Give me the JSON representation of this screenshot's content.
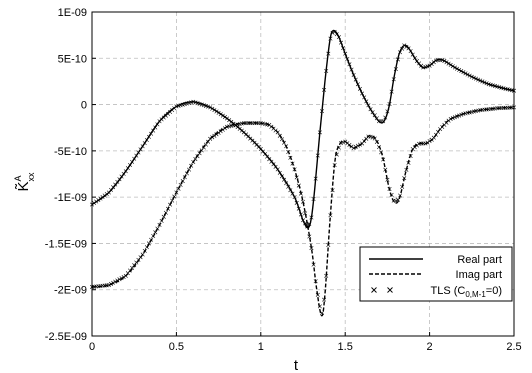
{
  "chart_data": {
    "type": "line",
    "title": "",
    "xlabel": "t",
    "ylabel": "K̃",
    "ylabel_super": "A",
    "ylabel_sub": "xx",
    "xlim": [
      0,
      2.5
    ],
    "ylim": [
      -2.5e-09,
      1e-09
    ],
    "x_ticks": [
      0,
      0.5,
      1,
      1.5,
      2,
      2.5
    ],
    "x_tick_labels": [
      "0",
      "0.5",
      "1",
      "1.5",
      "2",
      "2.5"
    ],
    "y_ticks": [
      1e-09,
      5e-10,
      0,
      -5e-10,
      -1e-09,
      -1.5e-09,
      -2e-09,
      -2.5e-09
    ],
    "y_tick_labels": [
      "1E-09",
      "5E-10",
      "0",
      "-5E-10",
      "-1E-09",
      "-1.5E-09",
      "-2E-09",
      "-2.5E-09"
    ],
    "grid": true,
    "legend_position": "bottom-right",
    "series": [
      {
        "name": "Real part",
        "style": "solid",
        "points": [
          [
            0,
            -1.08e-09
          ],
          [
            0.1,
            -9.5e-10
          ],
          [
            0.2,
            -7.2e-10
          ],
          [
            0.3,
            -4.5e-10
          ],
          [
            0.4,
            -1.8e-10
          ],
          [
            0.5,
            -2e-11
          ],
          [
            0.6,
            3e-11
          ],
          [
            0.7,
            -3e-11
          ],
          [
            0.8,
            -1.5e-10
          ],
          [
            0.9,
            -3e-10
          ],
          [
            1.0,
            -4.8e-10
          ],
          [
            1.1,
            -7e-10
          ],
          [
            1.2,
            -1e-09
          ],
          [
            1.25,
            -1.25e-09
          ],
          [
            1.28,
            -1.33e-09
          ],
          [
            1.3,
            -1.22e-09
          ],
          [
            1.32,
            -9e-10
          ],
          [
            1.35,
            -3e-10
          ],
          [
            1.38,
            2.5e-10
          ],
          [
            1.41,
            7e-10
          ],
          [
            1.43,
            8e-10
          ],
          [
            1.46,
            7.4e-10
          ],
          [
            1.5,
            5.5e-10
          ],
          [
            1.55,
            3.2e-10
          ],
          [
            1.6,
            1.2e-10
          ],
          [
            1.65,
            -5e-11
          ],
          [
            1.7,
            -1.8e-10
          ],
          [
            1.73,
            -1.8e-10
          ],
          [
            1.76,
            -2e-11
          ],
          [
            1.79,
            3e-10
          ],
          [
            1.82,
            5.5e-10
          ],
          [
            1.85,
            6.4e-10
          ],
          [
            1.88,
            6e-10
          ],
          [
            1.92,
            4.8e-10
          ],
          [
            1.96,
            4e-10
          ],
          [
            2.0,
            4.2e-10
          ],
          [
            2.04,
            4.8e-10
          ],
          [
            2.08,
            4.8e-10
          ],
          [
            2.15,
            4e-10
          ],
          [
            2.25,
            3e-10
          ],
          [
            2.35,
            2.2e-10
          ],
          [
            2.45,
            1.7e-10
          ],
          [
            2.5,
            1.5e-10
          ]
        ]
      },
      {
        "name": "Imag part",
        "style": "dashed",
        "points": [
          [
            0,
            -1.97e-09
          ],
          [
            0.1,
            -1.95e-09
          ],
          [
            0.2,
            -1.85e-09
          ],
          [
            0.3,
            -1.62e-09
          ],
          [
            0.4,
            -1.3e-09
          ],
          [
            0.5,
            -9.5e-10
          ],
          [
            0.6,
            -6.2e-10
          ],
          [
            0.7,
            -3.7e-10
          ],
          [
            0.8,
            -2.4e-10
          ],
          [
            0.9,
            -2e-10
          ],
          [
            1.0,
            -2e-10
          ],
          [
            1.05,
            -2.2e-10
          ],
          [
            1.1,
            -3e-10
          ],
          [
            1.15,
            -4.5e-10
          ],
          [
            1.2,
            -7e-10
          ],
          [
            1.25,
            -1.05e-09
          ],
          [
            1.3,
            -1.55e-09
          ],
          [
            1.33,
            -1.98e-09
          ],
          [
            1.36,
            -2.28e-09
          ],
          [
            1.38,
            -2.05e-09
          ],
          [
            1.41,
            -1.25e-09
          ],
          [
            1.44,
            -6e-10
          ],
          [
            1.47,
            -4.2e-10
          ],
          [
            1.5,
            -4e-10
          ],
          [
            1.55,
            -4.7e-10
          ],
          [
            1.6,
            -4.2e-10
          ],
          [
            1.64,
            -3.4e-10
          ],
          [
            1.68,
            -3.7e-10
          ],
          [
            1.72,
            -5.5e-10
          ],
          [
            1.76,
            -9e-10
          ],
          [
            1.79,
            -1.05e-09
          ],
          [
            1.82,
            -1.02e-09
          ],
          [
            1.86,
            -7.2e-10
          ],
          [
            1.9,
            -4.8e-10
          ],
          [
            1.94,
            -4.2e-10
          ],
          [
            1.98,
            -4.2e-10
          ],
          [
            2.02,
            -3.7e-10
          ],
          [
            2.06,
            -2.7e-10
          ],
          [
            2.12,
            -1.6e-10
          ],
          [
            2.2,
            -1e-10
          ],
          [
            2.3,
            -6e-11
          ],
          [
            2.4,
            -4e-11
          ],
          [
            2.5,
            -3e-11
          ]
        ]
      },
      {
        "name": "TLS (C0,M-1=0)",
        "style": "markers"
      }
    ],
    "legend": [
      {
        "label": "Real part",
        "style": "solid"
      },
      {
        "label": "Imag part",
        "style": "dashed"
      },
      {
        "label_main": "TLS (C",
        "label_sub": "0,M-1",
        "label_end": "=0)",
        "style": "markers"
      }
    ]
  }
}
